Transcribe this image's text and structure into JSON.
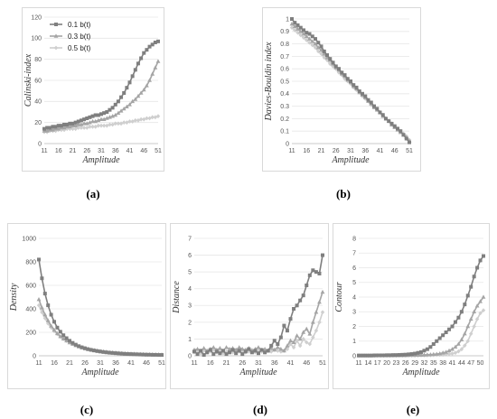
{
  "charts": [
    {
      "id": "a",
      "caption": "(a)",
      "type": "line",
      "ylabel": "Calinski-index",
      "xlabel": "Amplitude",
      "ylim": [
        0,
        120
      ],
      "yticks": [
        "0",
        "20",
        "40",
        "60",
        "80",
        "100",
        "120"
      ],
      "xticks": [
        "11",
        "16",
        "21",
        "26",
        "31",
        "36",
        "41",
        "46",
        "51"
      ],
      "x": [
        11,
        12,
        13,
        14,
        15,
        16,
        17,
        18,
        19,
        20,
        21,
        22,
        23,
        24,
        25,
        26,
        27,
        28,
        29,
        30,
        31,
        32,
        33,
        34,
        35,
        36,
        37,
        38,
        39,
        40,
        41,
        42,
        43,
        44,
        45,
        46,
        47,
        48,
        49,
        50,
        51
      ],
      "legend": [
        "0.1 b(t)",
        "0.3 b(t)",
        "0.5 b(t)"
      ],
      "series": [
        {
          "name": "0.1 b(t)",
          "color": "#7f7f7f",
          "marker": "square",
          "values": [
            14,
            15,
            15,
            16,
            16,
            17,
            17,
            18,
            18,
            19,
            19,
            20,
            21,
            22,
            23,
            24,
            25,
            26,
            27,
            27,
            28,
            29,
            30,
            32,
            34,
            37,
            40,
            44,
            48,
            53,
            58,
            64,
            70,
            76,
            81,
            86,
            89,
            92,
            94,
            96,
            97
          ]
        },
        {
          "name": "0.3 b(t)",
          "color": "#a5a5a5",
          "marker": "triangle",
          "values": [
            12,
            12,
            13,
            13,
            14,
            14,
            15,
            15,
            16,
            16,
            17,
            17,
            18,
            18,
            19,
            19,
            20,
            21,
            21,
            22,
            23,
            23,
            24,
            25,
            26,
            27,
            29,
            31,
            33,
            35,
            37,
            40,
            42,
            45,
            48,
            51,
            55,
            60,
            66,
            72,
            78
          ]
        },
        {
          "name": "0.5 b(t)",
          "color": "#cfcfcf",
          "marker": "diamond",
          "values": [
            11,
            11,
            12,
            12,
            12,
            13,
            13,
            13,
            14,
            14,
            14,
            14,
            15,
            15,
            15,
            15,
            16,
            16,
            16,
            17,
            17,
            17,
            17,
            18,
            18,
            19,
            19,
            19,
            20,
            20,
            21,
            21,
            22,
            22,
            23,
            23,
            24,
            24,
            25,
            25,
            26
          ]
        }
      ]
    },
    {
      "id": "b",
      "caption": "(b)",
      "type": "line",
      "ylabel": "Davies-Bouldin index",
      "xlabel": "Amplitude",
      "ylim": [
        0,
        1
      ],
      "yticks": [
        "0",
        "0.1",
        "0.2",
        "0.3",
        "0.4",
        "0.5",
        "0.6",
        "0.7",
        "0.8",
        "0.9",
        "1"
      ],
      "xticks": [
        "11",
        "16",
        "21",
        "26",
        "31",
        "36",
        "41",
        "46",
        "51"
      ],
      "x": [
        11,
        12,
        13,
        14,
        15,
        16,
        17,
        18,
        19,
        20,
        21,
        22,
        23,
        24,
        25,
        26,
        27,
        28,
        29,
        30,
        31,
        32,
        33,
        34,
        35,
        36,
        37,
        38,
        39,
        40,
        41,
        42,
        43,
        44,
        45,
        46,
        47,
        48,
        49,
        50,
        51
      ],
      "series": [
        {
          "name": "0.1 b(t)",
          "color": "#7f7f7f",
          "marker": "square",
          "values": [
            1.0,
            0.97,
            0.95,
            0.93,
            0.91,
            0.89,
            0.88,
            0.86,
            0.84,
            0.81,
            0.78,
            0.74,
            0.71,
            0.68,
            0.65,
            0.62,
            0.6,
            0.57,
            0.55,
            0.52,
            0.5,
            0.47,
            0.45,
            0.42,
            0.4,
            0.38,
            0.35,
            0.33,
            0.3,
            0.28,
            0.25,
            0.23,
            0.2,
            0.18,
            0.16,
            0.14,
            0.12,
            0.1,
            0.07,
            0.04,
            0.01
          ]
        },
        {
          "name": "0.3 b(t)",
          "color": "#a5a5a5",
          "marker": "triangle",
          "values": [
            0.96,
            0.94,
            0.92,
            0.9,
            0.88,
            0.86,
            0.84,
            0.82,
            0.8,
            0.77,
            0.75,
            0.72,
            0.69,
            0.67,
            0.64,
            0.61,
            0.59,
            0.56,
            0.54,
            0.51,
            0.49,
            0.46,
            0.44,
            0.41,
            0.39,
            0.37,
            0.34,
            0.32,
            0.29,
            0.27,
            0.25,
            0.22,
            0.2,
            0.18,
            0.15,
            0.13,
            0.11,
            0.09,
            0.07,
            0.05,
            0.02
          ]
        },
        {
          "name": "0.5 b(t)",
          "color": "#cfcfcf",
          "marker": "diamond",
          "values": [
            0.93,
            0.91,
            0.89,
            0.87,
            0.85,
            0.83,
            0.81,
            0.79,
            0.77,
            0.74,
            0.72,
            0.69,
            0.67,
            0.64,
            0.62,
            0.6,
            0.57,
            0.55,
            0.52,
            0.5,
            0.48,
            0.45,
            0.43,
            0.41,
            0.38,
            0.36,
            0.34,
            0.31,
            0.29,
            0.27,
            0.25,
            0.23,
            0.2,
            0.18,
            0.16,
            0.14,
            0.12,
            0.1,
            0.08,
            0.06,
            0.03
          ]
        }
      ]
    },
    {
      "id": "c",
      "caption": "(c)",
      "type": "line",
      "ylabel": "Density",
      "xlabel": "Amplitude",
      "ylim": [
        0,
        1000
      ],
      "yticks": [
        "0",
        "200",
        "400",
        "600",
        "800",
        "1000"
      ],
      "xticks": [
        "11",
        "16",
        "21",
        "26",
        "31",
        "36",
        "41",
        "46",
        "51"
      ],
      "x": [
        11,
        12,
        13,
        14,
        15,
        16,
        17,
        18,
        19,
        20,
        21,
        22,
        23,
        24,
        25,
        26,
        27,
        28,
        29,
        30,
        31,
        32,
        33,
        34,
        35,
        36,
        37,
        38,
        39,
        40,
        41,
        42,
        43,
        44,
        45,
        46,
        47,
        48,
        49,
        50,
        51
      ],
      "series": [
        {
          "name": "0.1 b(t)",
          "color": "#7f7f7f",
          "marker": "square",
          "values": [
            820,
            660,
            530,
            430,
            350,
            290,
            240,
            205,
            175,
            150,
            128,
            110,
            95,
            82,
            72,
            64,
            56,
            50,
            45,
            40,
            36,
            32,
            29,
            26,
            24,
            22,
            20,
            18,
            16,
            15,
            14,
            13,
            12,
            11,
            10,
            9,
            9,
            8,
            8,
            7,
            7
          ]
        },
        {
          "name": "0.3 b(t)",
          "color": "#a5a5a5",
          "marker": "triangle",
          "values": [
            480,
            410,
            350,
            300,
            255,
            220,
            190,
            165,
            145,
            128,
            112,
            99,
            88,
            78,
            70,
            62,
            56,
            50,
            45,
            41,
            37,
            34,
            31,
            28,
            26,
            24,
            22,
            20,
            18,
            17,
            16,
            15,
            14,
            13,
            12,
            11,
            10,
            10,
            9,
            9,
            8
          ]
        },
        {
          "name": "0.5 b(t)",
          "color": "#cfcfcf",
          "marker": "diamond",
          "values": [
            430,
            370,
            320,
            275,
            240,
            210,
            185,
            162,
            143,
            127,
            113,
            101,
            90,
            81,
            73,
            66,
            60,
            54,
            49,
            45,
            41,
            37,
            34,
            31,
            29,
            27,
            25,
            23,
            21,
            20,
            18,
            17,
            16,
            15,
            14,
            13,
            12,
            12,
            11,
            11,
            10
          ]
        }
      ]
    },
    {
      "id": "d",
      "caption": "(d)",
      "type": "line",
      "ylabel": "Distance",
      "xlabel": "Amplitude",
      "ylim": [
        0,
        7
      ],
      "yticks": [
        "0",
        "1",
        "2",
        "3",
        "4",
        "5",
        "6",
        "7"
      ],
      "xticks": [
        "11",
        "16",
        "21",
        "26",
        "31",
        "36",
        "41",
        "46",
        "51"
      ],
      "x": [
        11,
        12,
        13,
        14,
        15,
        16,
        17,
        18,
        19,
        20,
        21,
        22,
        23,
        24,
        25,
        26,
        27,
        28,
        29,
        30,
        31,
        32,
        33,
        34,
        35,
        36,
        37,
        38,
        39,
        40,
        41,
        42,
        43,
        44,
        45,
        46,
        47,
        48,
        49,
        50,
        51
      ],
      "series": [
        {
          "name": "0.1 b(t)",
          "color": "#7f7f7f",
          "marker": "square",
          "values": [
            0.25,
            0.1,
            0.3,
            0.05,
            0.2,
            0.35,
            0.1,
            0.25,
            0.15,
            0.3,
            0.1,
            0.2,
            0.35,
            0.15,
            0.3,
            0.1,
            0.25,
            0.4,
            0.2,
            0.3,
            0.15,
            0.35,
            0.2,
            0.3,
            0.6,
            0.9,
            0.7,
            1.1,
            1.8,
            1.5,
            2.2,
            2.8,
            3.0,
            3.3,
            3.6,
            4.2,
            4.8,
            5.1,
            5.0,
            4.9,
            6.0
          ]
        },
        {
          "name": "0.3 b(t)",
          "color": "#a5a5a5",
          "marker": "triangle",
          "values": [
            0.35,
            0.4,
            0.3,
            0.45,
            0.3,
            0.4,
            0.5,
            0.35,
            0.45,
            0.3,
            0.5,
            0.4,
            0.45,
            0.35,
            0.5,
            0.4,
            0.35,
            0.45,
            0.3,
            0.4,
            0.5,
            0.35,
            0.4,
            0.3,
            0.45,
            0.35,
            0.5,
            0.4,
            0.3,
            0.6,
            0.9,
            0.8,
            1.2,
            1.0,
            1.4,
            1.6,
            1.3,
            2.0,
            2.6,
            3.2,
            3.8
          ]
        },
        {
          "name": "0.5 b(t)",
          "color": "#cfcfcf",
          "marker": "diamond",
          "values": [
            0.2,
            0.25,
            0.15,
            0.3,
            0.2,
            0.25,
            0.35,
            0.2,
            0.3,
            0.15,
            0.25,
            0.3,
            0.2,
            0.35,
            0.25,
            0.3,
            0.2,
            0.25,
            0.35,
            0.2,
            0.3,
            0.25,
            0.2,
            0.3,
            0.25,
            0.35,
            0.3,
            0.25,
            0.3,
            0.4,
            0.7,
            0.5,
            0.9,
            0.6,
            1.0,
            0.8,
            0.7,
            1.1,
            1.5,
            2.0,
            2.6
          ]
        }
      ]
    },
    {
      "id": "e",
      "caption": "(e)",
      "type": "line",
      "ylabel": "Contour",
      "xlabel": "Amplitude",
      "ylim": [
        0,
        8
      ],
      "yticks": [
        "0",
        "1",
        "2",
        "3",
        "4",
        "5",
        "6",
        "7",
        "8"
      ],
      "xticks": [
        "11",
        "14",
        "17",
        "20",
        "23",
        "26",
        "29",
        "32",
        "35",
        "38",
        "41",
        "44",
        "47",
        "50"
      ],
      "x": [
        11,
        12,
        13,
        14,
        15,
        16,
        17,
        18,
        19,
        20,
        21,
        22,
        23,
        24,
        25,
        26,
        27,
        28,
        29,
        30,
        31,
        32,
        33,
        34,
        35,
        36,
        37,
        38,
        39,
        40,
        41,
        42,
        43,
        44,
        45,
        46,
        47,
        48,
        49,
        50,
        51
      ],
      "series": [
        {
          "name": "0.1 b(t)",
          "color": "#7f7f7f",
          "marker": "square",
          "values": [
            0.02,
            0.02,
            0.02,
            0.02,
            0.02,
            0.03,
            0.03,
            0.03,
            0.03,
            0.04,
            0.04,
            0.05,
            0.05,
            0.06,
            0.07,
            0.08,
            0.1,
            0.12,
            0.15,
            0.2,
            0.25,
            0.35,
            0.45,
            0.6,
            0.8,
            1.0,
            1.2,
            1.4,
            1.6,
            1.8,
            2.0,
            2.3,
            2.6,
            3.0,
            3.5,
            4.1,
            4.7,
            5.4,
            6.0,
            6.5,
            6.8
          ]
        },
        {
          "name": "0.3 b(t)",
          "color": "#a5a5a5",
          "marker": "triangle",
          "values": [
            0.01,
            0.01,
            0.01,
            0.01,
            0.01,
            0.01,
            0.02,
            0.02,
            0.02,
            0.02,
            0.02,
            0.02,
            0.03,
            0.03,
            0.03,
            0.03,
            0.04,
            0.04,
            0.04,
            0.05,
            0.05,
            0.06,
            0.07,
            0.08,
            0.1,
            0.12,
            0.15,
            0.2,
            0.25,
            0.35,
            0.45,
            0.6,
            0.8,
            1.1,
            1.5,
            2.0,
            2.5,
            3.0,
            3.4,
            3.7,
            4.0
          ]
        },
        {
          "name": "0.5 b(t)",
          "color": "#cfcfcf",
          "marker": "diamond",
          "values": [
            0.0,
            0.0,
            0.0,
            0.0,
            0.0,
            0.0,
            0.01,
            0.01,
            0.01,
            0.01,
            0.01,
            0.01,
            0.01,
            0.01,
            0.01,
            0.02,
            0.02,
            0.02,
            0.02,
            0.02,
            0.03,
            0.03,
            0.03,
            0.04,
            0.05,
            0.06,
            0.07,
            0.08,
            0.1,
            0.12,
            0.15,
            0.2,
            0.3,
            0.45,
            0.7,
            1.0,
            1.5,
            2.0,
            2.5,
            2.9,
            3.1
          ]
        }
      ]
    }
  ]
}
